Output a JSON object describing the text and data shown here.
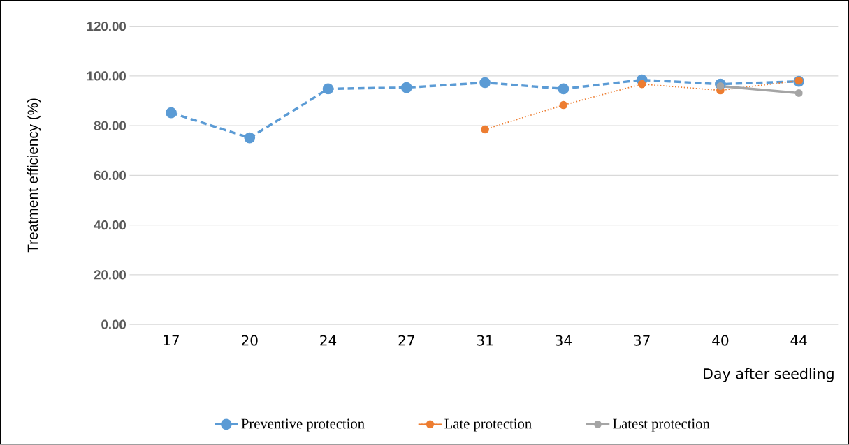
{
  "chart_data": {
    "type": "line",
    "xlabel": "Day after seedling",
    "ylabel": "Treatment efficiency (%)",
    "categories": [
      "17",
      "20",
      "24",
      "27",
      "31",
      "34",
      "37",
      "40",
      "44"
    ],
    "series": [
      {
        "name": "Preventive protection",
        "color": "#5b9bd5",
        "line_style": "dashed",
        "values": [
          85.2,
          75.1,
          94.8,
          95.3,
          97.3,
          94.8,
          98.4,
          96.7,
          97.8
        ]
      },
      {
        "name": "Late protection",
        "color": "#ed7d31",
        "line_style": "dotted",
        "values": [
          null,
          null,
          null,
          null,
          78.5,
          88.3,
          96.7,
          94.2,
          98.1
        ]
      },
      {
        "name": "Latest protection",
        "color": "#a5a5a5",
        "line_style": "solid",
        "values": [
          null,
          null,
          null,
          null,
          null,
          null,
          null,
          95.9,
          93.1
        ]
      }
    ],
    "ylim": [
      0,
      120
    ],
    "yticks": [
      {
        "value": 0,
        "label": "0.00"
      },
      {
        "value": 20,
        "label": "20.00"
      },
      {
        "value": 40,
        "label": "40.00"
      },
      {
        "value": 60,
        "label": "60.00"
      },
      {
        "value": 80,
        "label": "80.00"
      },
      {
        "value": 100,
        "label": "100.00"
      },
      {
        "value": 120,
        "label": "120.00"
      }
    ],
    "grid": "y",
    "legend": "bottom",
    "marker": "circle"
  }
}
